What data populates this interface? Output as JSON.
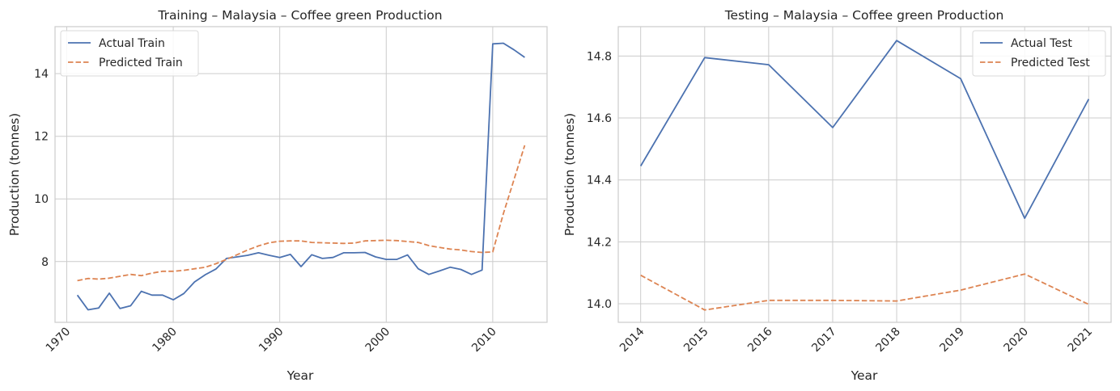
{
  "chart_data": [
    {
      "type": "line",
      "title": "Training – Malaysia – Coffee green Production",
      "xlabel": "Year",
      "ylabel": "Production (tonnes)",
      "xlim": [
        1968.9,
        2015.1
      ],
      "ylim": [
        6.06,
        15.5
      ],
      "xticks": [
        1970,
        1980,
        1990,
        2000,
        2010
      ],
      "yticks": [
        8,
        10,
        12,
        14
      ],
      "grid": true,
      "legend_position": "top-left",
      "x": [
        1971,
        1972,
        1973,
        1974,
        1975,
        1976,
        1977,
        1978,
        1979,
        1980,
        1981,
        1982,
        1983,
        1984,
        1985,
        1986,
        1987,
        1988,
        1989,
        1990,
        1991,
        1992,
        1993,
        1994,
        1995,
        1996,
        1997,
        1998,
        1999,
        2000,
        2001,
        2002,
        2003,
        2004,
        2005,
        2006,
        2007,
        2008,
        2009,
        2010,
        2011,
        2012,
        2013
      ],
      "series": [
        {
          "name": "Actual Train",
          "color": "#4c72b0",
          "dash": "solid",
          "values": [
            6.93,
            6.46,
            6.52,
            6.99,
            6.5,
            6.59,
            7.05,
            6.93,
            6.93,
            6.78,
            6.98,
            7.35,
            7.58,
            7.76,
            8.1,
            8.15,
            8.2,
            8.28,
            8.2,
            8.13,
            8.23,
            7.84,
            8.22,
            8.1,
            8.13,
            8.28,
            8.28,
            8.29,
            8.15,
            8.07,
            8.07,
            8.21,
            7.77,
            7.59,
            7.7,
            7.82,
            7.75,
            7.59,
            7.73,
            14.95,
            14.97,
            14.76,
            14.52
          ]
        },
        {
          "name": "Predicted Train",
          "color": "#dd8452",
          "dash": "dashed",
          "values": [
            7.39,
            7.46,
            7.44,
            7.47,
            7.53,
            7.59,
            7.55,
            7.63,
            7.69,
            7.69,
            7.72,
            7.77,
            7.82,
            7.93,
            8.07,
            8.22,
            8.37,
            8.5,
            8.6,
            8.65,
            8.66,
            8.66,
            8.61,
            8.6,
            8.59,
            8.58,
            8.59,
            8.66,
            8.67,
            8.68,
            8.67,
            8.64,
            8.61,
            8.51,
            8.45,
            8.4,
            8.37,
            8.32,
            8.29,
            8.31,
            9.53,
            10.62,
            11.71
          ]
        }
      ]
    },
    {
      "type": "line",
      "title": "Testing – Malaysia – Coffee green Production",
      "xlabel": "Year",
      "ylabel": "Production (tonnes)",
      "xlim": [
        2013.65,
        2021.35
      ],
      "ylim": [
        13.94,
        14.895
      ],
      "xticks": [
        2014,
        2015,
        2016,
        2017,
        2018,
        2019,
        2020,
        2021
      ],
      "yticks": [
        14.0,
        14.2,
        14.4,
        14.6,
        14.8
      ],
      "grid": true,
      "legend_position": "top-right",
      "x": [
        2014,
        2015,
        2016,
        2017,
        2018,
        2019,
        2020,
        2021
      ],
      "series": [
        {
          "name": "Actual Test",
          "color": "#4c72b0",
          "dash": "solid",
          "values": [
            14.445,
            14.795,
            14.772,
            14.569,
            14.85,
            14.727,
            14.276,
            14.661
          ]
        },
        {
          "name": "Predicted Test",
          "color": "#dd8452",
          "dash": "dashed",
          "values": [
            14.092,
            13.98,
            14.011,
            14.011,
            14.009,
            14.044,
            14.096,
            13.998
          ]
        }
      ]
    }
  ]
}
